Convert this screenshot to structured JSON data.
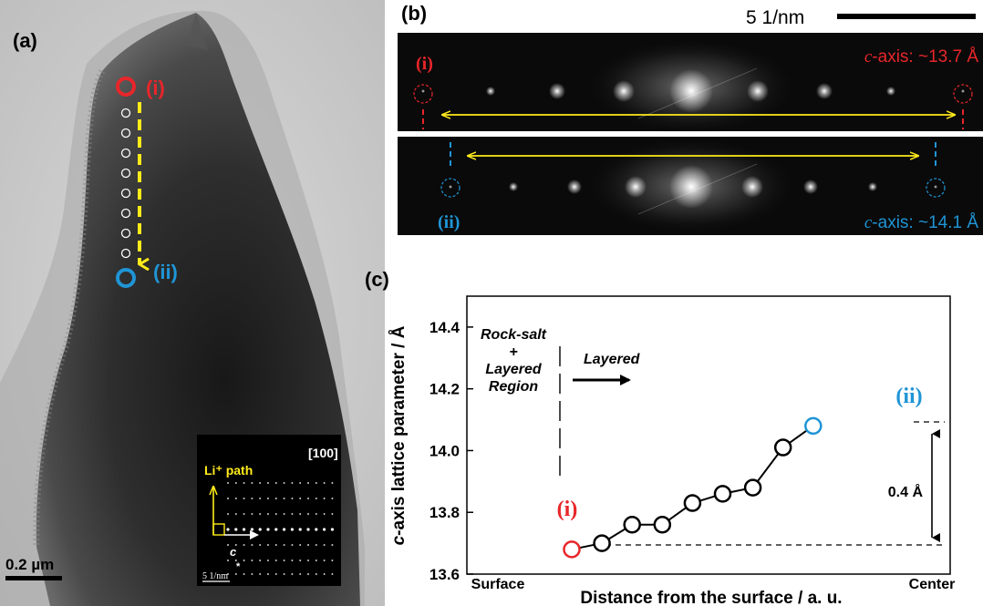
{
  "panels": {
    "a": {
      "label": "(a)",
      "point_i_label": "(i)",
      "point_ii_label": "(ii)",
      "scalebar_label": "0.2 µm",
      "inset": {
        "zone_axis": "[100]",
        "path_label": "Li⁺ path",
        "c_label": "c",
        "star_label": "*",
        "scale_label": "5 1/nm"
      }
    },
    "b": {
      "label": "(b)",
      "scalebar_label": "5 1/nm",
      "top": {
        "tag": "(i)",
        "axis_italic": "c",
        "axis_text": "-axis: ~13.7 Å"
      },
      "bottom": {
        "tag": "(ii)",
        "axis_italic": "c",
        "axis_text": "-axis: ~14.1 Å"
      }
    },
    "c": {
      "label": "(c)",
      "region_left_lines": [
        "Rock-salt",
        "+",
        "Layered",
        "Region"
      ],
      "region_right": "Layered",
      "delta_label": "0.4 Å",
      "point_i_label": "(i)",
      "point_ii_label": "(ii)"
    }
  },
  "colors": {
    "red": "#e8262a",
    "blue": "#1f95d6",
    "yellow": "#ffeb1a"
  },
  "chart_data": {
    "type": "line",
    "xlabel": "Distance from the surface / a. u.",
    "ylabel_italic": "c",
    "ylabel": "-axis lattice parameter / Å",
    "x_ticklabels": [
      "Surface",
      "Center"
    ],
    "ylim": [
      13.6,
      14.5
    ],
    "yticks": [
      13.6,
      13.8,
      14.0,
      14.2,
      14.4
    ],
    "ytick_labels": [
      "13.6",
      "13.8",
      "14.0",
      "14.2",
      "14.4"
    ],
    "x": [
      1,
      2,
      3,
      4,
      5,
      6,
      7,
      8,
      9
    ],
    "values": [
      13.68,
      13.7,
      13.76,
      13.76,
      13.83,
      13.86,
      13.88,
      14.01,
      14.08
    ],
    "highlight": [
      {
        "index": 0,
        "color": "red",
        "label": "(i)"
      },
      {
        "index": 8,
        "color": "blue",
        "label": "(ii)"
      }
    ],
    "grid": false,
    "legend": "none"
  }
}
